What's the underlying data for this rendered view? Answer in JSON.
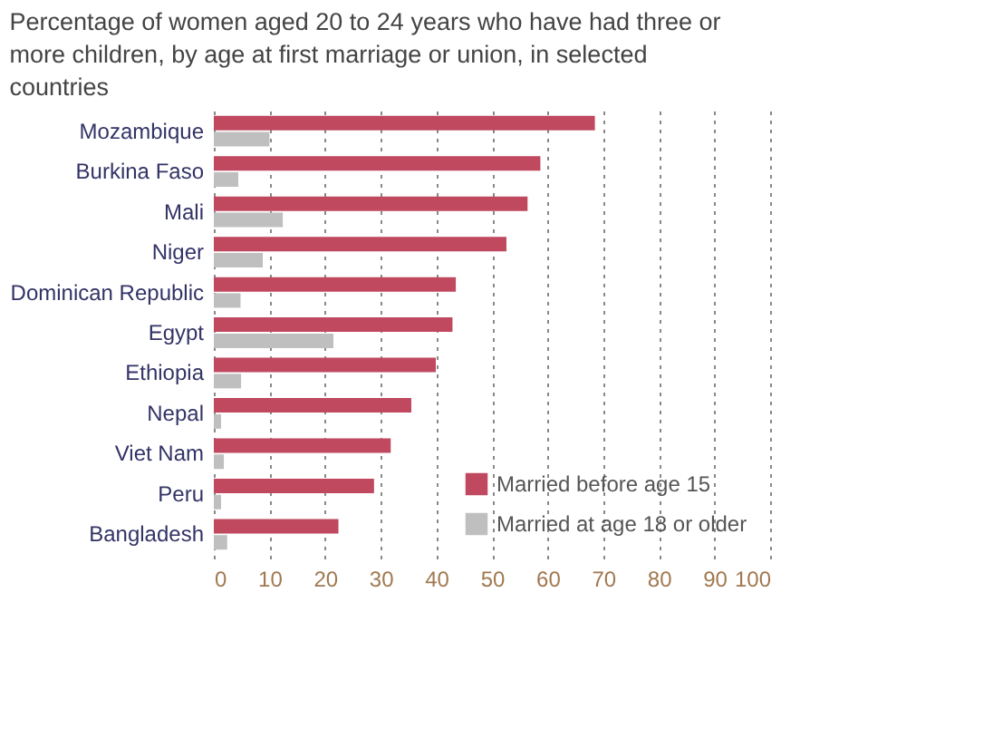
{
  "chart_data": {
    "type": "bar",
    "orientation": "horizontal",
    "title": "Percentage of women aged 20 to 24 years who have had three or more children, by age at first marriage or union, in selected countries",
    "categories": [
      "Mozambique",
      "Burkina Faso",
      "Mali",
      "Niger",
      "Dominican Republic",
      "Egypt",
      "Ethiopia",
      "Nepal",
      "Viet Nam",
      "Peru",
      "Bangladesh"
    ],
    "series": [
      {
        "name": "Married before age 15",
        "color": "#c0485f",
        "values": [
          68.5,
          58.7,
          56.4,
          52.6,
          43.5,
          42.9,
          39.9,
          35.5,
          31.8,
          28.8,
          22.4
        ]
      },
      {
        "name": "Married at age 18 or older",
        "color": "#bfbfbf",
        "values": [
          10,
          4.4,
          12.4,
          8.8,
          4.8,
          21.5,
          4.9,
          1.3,
          1.8,
          1.3,
          2.4
        ]
      }
    ],
    "xlim": [
      0,
      100
    ],
    "xticks": [
      0,
      10,
      20,
      30,
      40,
      50,
      60,
      70,
      80,
      90,
      100
    ],
    "grid": "x",
    "legend": "bottom right"
  }
}
